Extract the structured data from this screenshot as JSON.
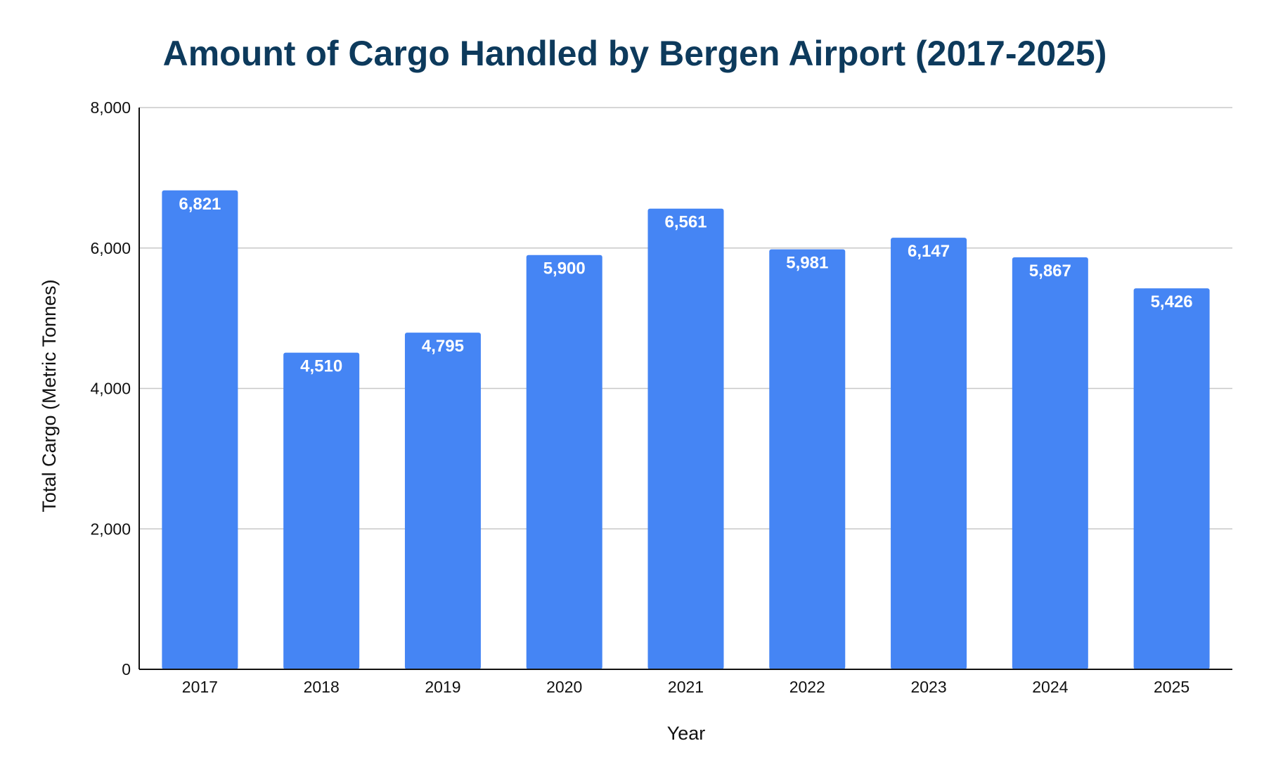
{
  "chart_data": {
    "type": "bar",
    "title": "Amount of Cargo Handled by Bergen Airport (2017-2025)",
    "xlabel": "Year",
    "ylabel": "Total Cargo (Metric Tonnes)",
    "categories": [
      "2017",
      "2018",
      "2019",
      "2020",
      "2021",
      "2022",
      "2023",
      "2024",
      "2025"
    ],
    "values": [
      6821,
      4510,
      4795,
      5900,
      6561,
      5981,
      6147,
      5867,
      5426
    ],
    "value_labels": [
      "6,821",
      "4,510",
      "4,795",
      "5,900",
      "6,561",
      "5,981",
      "6,147",
      "5,867",
      "5,426"
    ],
    "ylim": [
      0,
      8000
    ],
    "y_ticks": [
      0,
      2000,
      4000,
      6000,
      8000
    ],
    "y_tick_labels": [
      "0",
      "2,000",
      "4,000",
      "6,000",
      "8,000"
    ],
    "grid": true,
    "legend": "none",
    "colors": {
      "bar": "#4585f4",
      "title": "#0d3a5c",
      "data_label": "#ffffff"
    }
  }
}
